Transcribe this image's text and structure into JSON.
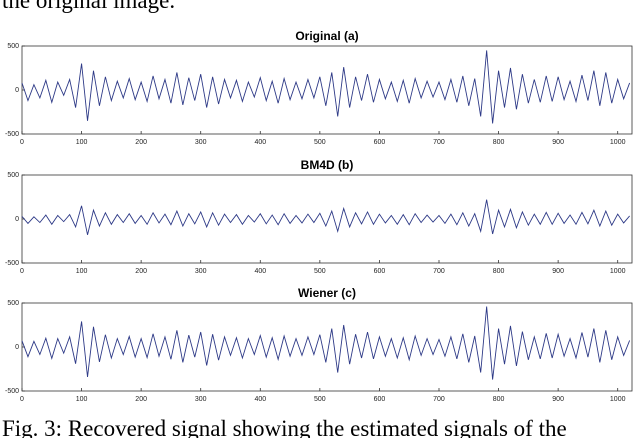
{
  "header_text": "the original image.",
  "caption": "Fig. 3: Recovered signal showing the estimated signals of the",
  "chart_data": [
    {
      "type": "line",
      "title": "Original (a)",
      "xlim": [
        0,
        1024
      ],
      "ylim": [
        -500,
        500
      ],
      "xticks": [
        0,
        100,
        200,
        300,
        400,
        500,
        600,
        700,
        800,
        900,
        1000
      ],
      "yticks": [
        -500,
        0,
        500
      ],
      "grid": false,
      "x": [
        0,
        10,
        20,
        30,
        40,
        50,
        60,
        70,
        80,
        90,
        100,
        110,
        120,
        130,
        140,
        150,
        160,
        170,
        180,
        190,
        200,
        210,
        220,
        230,
        240,
        250,
        260,
        270,
        280,
        290,
        300,
        310,
        320,
        330,
        340,
        350,
        360,
        370,
        380,
        390,
        400,
        410,
        420,
        430,
        440,
        450,
        460,
        470,
        480,
        490,
        500,
        510,
        520,
        530,
        540,
        550,
        560,
        570,
        580,
        590,
        600,
        610,
        620,
        630,
        640,
        650,
        660,
        670,
        680,
        690,
        700,
        710,
        720,
        730,
        740,
        750,
        760,
        770,
        780,
        790,
        800,
        810,
        820,
        830,
        840,
        850,
        860,
        870,
        880,
        890,
        900,
        910,
        920,
        930,
        940,
        950,
        960,
        970,
        980,
        990,
        1000,
        1010,
        1020
      ],
      "series": [
        {
          "color": "#2e3a87",
          "values": [
            80,
            -120,
            60,
            -90,
            110,
            -140,
            90,
            -60,
            120,
            -200,
            300,
            -350,
            220,
            -180,
            150,
            -120,
            100,
            -90,
            130,
            -110,
            90,
            -130,
            160,
            -100,
            120,
            -150,
            200,
            -170,
            140,
            -120,
            180,
            -200,
            150,
            -160,
            120,
            -90,
            110,
            -130,
            90,
            -80,
            140,
            -120,
            100,
            -150,
            130,
            -110,
            90,
            -100,
            120,
            -90,
            150,
            -180,
            200,
            -300,
            260,
            -200,
            150,
            -120,
            180,
            -140,
            120,
            -100,
            90,
            -130,
            110,
            -150,
            130,
            -90,
            100,
            -80,
            90,
            -110,
            120,
            -140,
            160,
            -180,
            130,
            -300,
            450,
            -380,
            220,
            -200,
            250,
            -220,
            180,
            -150,
            120,
            -140,
            160,
            -130,
            150,
            -110,
            100,
            -130,
            170,
            -120,
            220,
            -180,
            200,
            -150,
            120,
            -100,
            80
          ]
        }
      ]
    },
    {
      "type": "line",
      "title": "BM4D (b)",
      "xlim": [
        0,
        1024
      ],
      "ylim": [
        -500,
        500
      ],
      "xticks": [
        0,
        100,
        200,
        300,
        400,
        500,
        600,
        700,
        800,
        900,
        1000
      ],
      "yticks": [
        -500,
        0,
        500
      ],
      "grid": false,
      "x": [
        0,
        10,
        20,
        30,
        40,
        50,
        60,
        70,
        80,
        90,
        100,
        110,
        120,
        130,
        140,
        150,
        160,
        170,
        180,
        190,
        200,
        210,
        220,
        230,
        240,
        250,
        260,
        270,
        280,
        290,
        300,
        310,
        320,
        330,
        340,
        350,
        360,
        370,
        380,
        390,
        400,
        410,
        420,
        430,
        440,
        450,
        460,
        470,
        480,
        490,
        500,
        510,
        520,
        530,
        540,
        550,
        560,
        570,
        580,
        590,
        600,
        610,
        620,
        630,
        640,
        650,
        660,
        670,
        680,
        690,
        700,
        710,
        720,
        730,
        740,
        750,
        760,
        770,
        780,
        790,
        800,
        810,
        820,
        830,
        840,
        850,
        860,
        870,
        880,
        890,
        900,
        910,
        920,
        930,
        940,
        950,
        960,
        970,
        980,
        990,
        1000,
        1010,
        1020
      ],
      "series": [
        {
          "color": "#2e3a87",
          "values": [
            30,
            -50,
            25,
            -40,
            45,
            -60,
            40,
            -30,
            50,
            -90,
            150,
            -180,
            100,
            -80,
            70,
            -60,
            50,
            -40,
            60,
            -50,
            40,
            -60,
            70,
            -45,
            55,
            -65,
            90,
            -80,
            60,
            -55,
            80,
            -90,
            70,
            -70,
            55,
            -40,
            50,
            -60,
            40,
            -35,
            60,
            -55,
            45,
            -65,
            60,
            -50,
            40,
            -45,
            55,
            -40,
            65,
            -80,
            90,
            -140,
            120,
            -90,
            70,
            -55,
            80,
            -60,
            55,
            -45,
            40,
            -60,
            50,
            -65,
            60,
            -40,
            45,
            -35,
            40,
            -50,
            55,
            -65,
            70,
            -80,
            60,
            -140,
            220,
            -170,
            100,
            -90,
            110,
            -100,
            80,
            -70,
            55,
            -60,
            75,
            -60,
            65,
            -50,
            45,
            -60,
            75,
            -55,
            100,
            -80,
            90,
            -70,
            55,
            -45,
            35
          ]
        }
      ]
    },
    {
      "type": "line",
      "title": "Wiener (c)",
      "xlim": [
        0,
        1024
      ],
      "ylim": [
        -500,
        500
      ],
      "xticks": [
        0,
        100,
        200,
        300,
        400,
        500,
        600,
        700,
        800,
        900,
        1000
      ],
      "yticks": [
        -500,
        0,
        500
      ],
      "grid": false,
      "x": [
        0,
        10,
        20,
        30,
        40,
        50,
        60,
        70,
        80,
        90,
        100,
        110,
        120,
        130,
        140,
        150,
        160,
        170,
        180,
        190,
        200,
        210,
        220,
        230,
        240,
        250,
        260,
        270,
        280,
        290,
        300,
        310,
        320,
        330,
        340,
        350,
        360,
        370,
        380,
        390,
        400,
        410,
        420,
        430,
        440,
        450,
        460,
        470,
        480,
        490,
        500,
        510,
        520,
        530,
        540,
        550,
        560,
        570,
        580,
        590,
        600,
        610,
        620,
        630,
        640,
        650,
        660,
        670,
        680,
        690,
        700,
        710,
        720,
        730,
        740,
        750,
        760,
        770,
        780,
        790,
        800,
        810,
        820,
        830,
        840,
        850,
        860,
        870,
        880,
        890,
        900,
        910,
        920,
        930,
        940,
        950,
        960,
        970,
        980,
        990,
        1000,
        1010,
        1020
      ],
      "series": [
        {
          "color": "#2e3a87",
          "values": [
            70,
            -110,
            65,
            -85,
            100,
            -130,
            95,
            -70,
            115,
            -190,
            290,
            -340,
            230,
            -170,
            140,
            -125,
            95,
            -85,
            120,
            -115,
            95,
            -120,
            150,
            -105,
            115,
            -140,
            190,
            -175,
            135,
            -115,
            170,
            -210,
            145,
            -150,
            115,
            -95,
            105,
            -125,
            95,
            -85,
            130,
            -115,
            105,
            -140,
            125,
            -105,
            95,
            -95,
            115,
            -85,
            140,
            -175,
            210,
            -290,
            250,
            -195,
            145,
            -125,
            170,
            -135,
            115,
            -105,
            95,
            -125,
            105,
            -145,
            125,
            -95,
            95,
            -85,
            85,
            -105,
            115,
            -135,
            150,
            -175,
            125,
            -290,
            460,
            -370,
            210,
            -195,
            240,
            -215,
            175,
            -145,
            115,
            -135,
            155,
            -125,
            145,
            -105,
            95,
            -125,
            165,
            -115,
            210,
            -175,
            190,
            -145,
            115,
            -95,
            75
          ]
        }
      ]
    }
  ]
}
